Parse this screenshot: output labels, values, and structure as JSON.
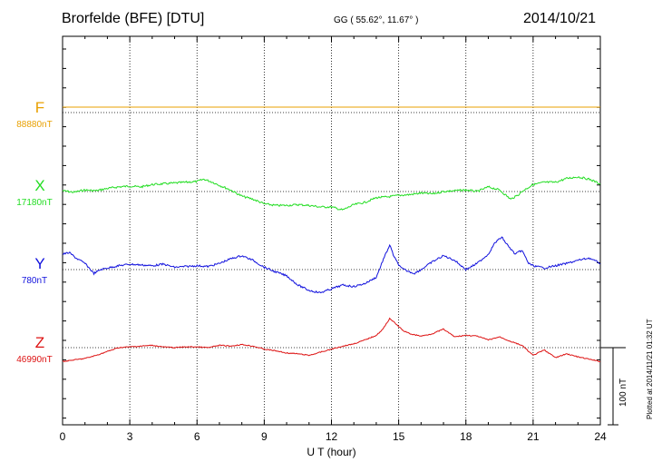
{
  "header": {
    "station": "Brorfelde (BFE)  [DTU]",
    "coords": "GG ( 55.62°,  11.67° )",
    "date": "2014/10/21",
    "plotted": "Plotted at 2014/11/21 01:32 UT"
  },
  "chart_data": {
    "type": "line",
    "xlabel": "U T (hour)",
    "xlim": [
      0,
      24
    ],
    "xticks": [
      "0",
      "3",
      "6",
      "9",
      "12",
      "15",
      "18",
      "21",
      "24"
    ],
    "grid": true,
    "scale_bar_label": "100 nT",
    "scale_bar_nT": 100,
    "series": [
      {
        "name": "F",
        "baseline_label": "88880nT",
        "color": "#e8a000",
        "x": [
          0,
          24
        ],
        "y": [
          0,
          0
        ]
      },
      {
        "name": "X",
        "baseline_label": "17180nT",
        "color": "#22dd22",
        "x": [
          0,
          0.5,
          1,
          1.5,
          2,
          2.5,
          3,
          3.5,
          4,
          4.5,
          5,
          5.5,
          6,
          6.3,
          6.7,
          7,
          7.5,
          8,
          8.5,
          9,
          9.5,
          10,
          10.5,
          11,
          11.5,
          12,
          12.5,
          13,
          13.5,
          14,
          14.5,
          15,
          15.5,
          16,
          16.5,
          17,
          17.5,
          18,
          18.5,
          19,
          19.5,
          20,
          20.3,
          20.6,
          21,
          21.5,
          22,
          22.5,
          23,
          23.5,
          24
        ],
        "y": [
          1,
          -1,
          2,
          1,
          4,
          6,
          7,
          6,
          9,
          10,
          11,
          12,
          13,
          16,
          12,
          8,
          2,
          -6,
          -10,
          -16,
          -18,
          -18,
          -17,
          -18,
          -20,
          -20,
          -24,
          -17,
          -14,
          -8,
          -7,
          -5,
          -4,
          -2,
          -3,
          0,
          1,
          2,
          0,
          6,
          2,
          -10,
          -5,
          2,
          9,
          12,
          12,
          17,
          19,
          16,
          10
        ]
      },
      {
        "name": "Y",
        "baseline_label": "780nT",
        "color": "#1111dd",
        "x": [
          0,
          0.3,
          0.6,
          1,
          1.4,
          1.7,
          2,
          2.5,
          3,
          3.5,
          4,
          4.5,
          5,
          5.5,
          6,
          6.5,
          7,
          7.5,
          8,
          8.5,
          9,
          9.5,
          10,
          10.5,
          11,
          11.5,
          12,
          12.5,
          13,
          13.5,
          14,
          14.3,
          14.6,
          14.8,
          15.1,
          15.4,
          15.7,
          16,
          16.5,
          17,
          17.5,
          18,
          18.5,
          19,
          19.3,
          19.6,
          19.9,
          20.2,
          20.5,
          20.8,
          21,
          21.5,
          22,
          22.5,
          23,
          23.5,
          24
        ],
        "y": [
          20,
          22,
          15,
          8,
          -5,
          0,
          2,
          5,
          7,
          6,
          5,
          7,
          3,
          4,
          5,
          4,
          8,
          14,
          18,
          12,
          3,
          -3,
          -8,
          -20,
          -27,
          -30,
          -25,
          -20,
          -22,
          -18,
          -10,
          12,
          32,
          16,
          2,
          -2,
          -5,
          0,
          10,
          18,
          12,
          0,
          8,
          20,
          35,
          42,
          30,
          20,
          25,
          8,
          5,
          2,
          5,
          8,
          12,
          15,
          8
        ]
      },
      {
        "name": "Z",
        "baseline_label": "46990nT",
        "color": "#dd1111",
        "x": [
          0,
          0.5,
          1,
          1.5,
          2,
          2.5,
          3,
          3.5,
          4,
          4.5,
          5,
          5.5,
          6,
          6.5,
          7,
          7.5,
          8,
          8.5,
          9,
          9.5,
          10,
          10.5,
          11,
          11.5,
          12,
          12.5,
          13,
          13.5,
          14,
          14.3,
          14.6,
          14.9,
          15.2,
          15.5,
          16,
          16.5,
          17,
          17.5,
          18,
          18.5,
          19,
          19.5,
          20,
          20.5,
          21,
          21.5,
          22,
          22.5,
          23,
          23.5,
          24
        ],
        "y": [
          -18,
          -16,
          -14,
          -10,
          -5,
          0,
          1,
          2,
          3,
          1,
          0,
          1,
          1,
          0,
          3,
          2,
          4,
          2,
          -2,
          -4,
          -7,
          -8,
          -10,
          -6,
          -2,
          2,
          5,
          10,
          16,
          24,
          38,
          30,
          22,
          18,
          15,
          18,
          24,
          14,
          16,
          15,
          10,
          14,
          8,
          3,
          -10,
          -3,
          -13,
          -8,
          -12,
          -15,
          -18
        ]
      }
    ]
  }
}
